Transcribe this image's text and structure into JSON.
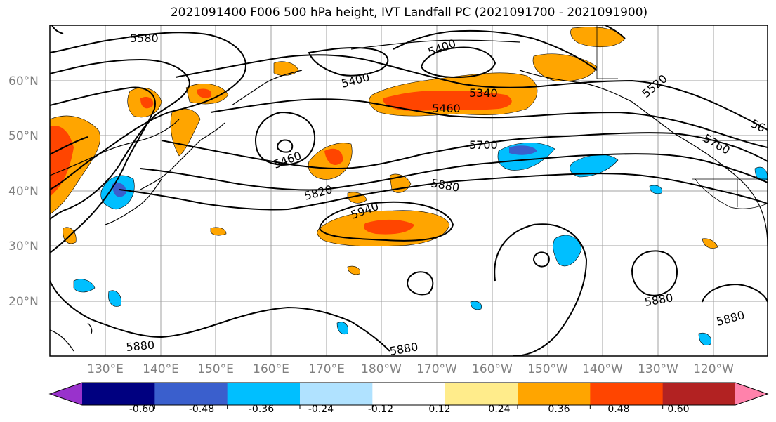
{
  "title": "2021091400 F006 500 hPa height, IVT Landfall PC (2021091700 - 2021091900)",
  "latitude_labels": [
    "60°N",
    "50°N",
    "40°N",
    "30°N",
    "20°N"
  ],
  "longitude_labels": [
    "130°E",
    "140°E",
    "150°E",
    "160°E",
    "170°E",
    "180°W",
    "170°W",
    "160°W",
    "150°W",
    "140°W",
    "130°W",
    "120°W"
  ],
  "contour_labels": [
    "5580",
    "5400",
    "5400",
    "5340",
    "5460",
    "5460",
    "5700",
    "5820",
    "5880",
    "5940",
    "5520",
    "56",
    "5760",
    "5880",
    "5880",
    "5880",
    "5880"
  ],
  "colorbar": {
    "colors": [
      "#9932cc",
      "#000080",
      "#3a5fcd",
      "#00bfff",
      "#b0e2ff",
      "#ffffff",
      "#ffec8b",
      "#ffa500",
      "#ff4500",
      "#b22222",
      "#ff82ab"
    ],
    "tick_labels": [
      "-0.60",
      "-0.48",
      "-0.36",
      "-0.24",
      "-0.12",
      "0.12",
      "0.24",
      "0.36",
      "0.48",
      "0.60"
    ]
  }
}
